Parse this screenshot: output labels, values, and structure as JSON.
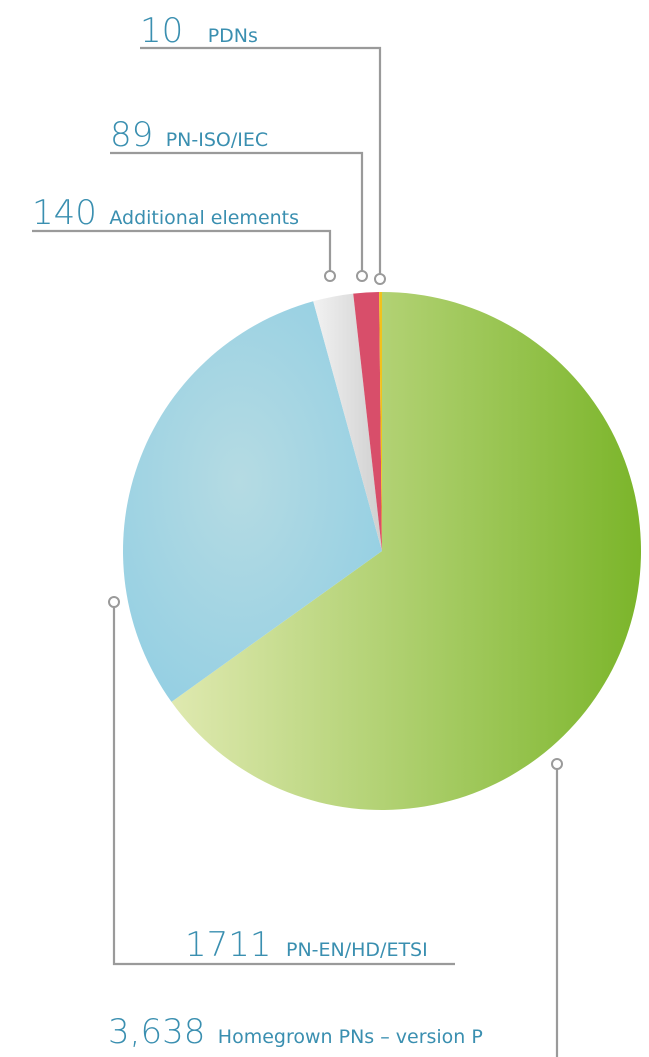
{
  "colors": {
    "label_text": "#3a8fb0",
    "leader_line": "#9a9a9a",
    "homegrown_light": "#dfe9b0",
    "homegrown_dark": "#7bb52a",
    "pn_en_light": "#b5dbe3",
    "pn_en_dark": "#8ecde3",
    "additional_light": "#f2f2f2",
    "additional_dark": "#cfcfcf",
    "pn_iso": "#d84e6a",
    "pdn": "#f2c21b"
  },
  "chart_data": {
    "type": "pie",
    "title": "",
    "start_angle_deg": 0,
    "direction": "clockwise",
    "slices": [
      {
        "key": "homegrown",
        "value": 3638,
        "value_label": "3,638",
        "label": "Homegrown PNs – version P"
      },
      {
        "key": "pn_en",
        "value": 1711,
        "value_label": "1711",
        "label": "PN-EN/HD/ETSI"
      },
      {
        "key": "additional",
        "value": 140,
        "value_label": "140",
        "label": "Additional elements"
      },
      {
        "key": "pn_iso",
        "value": 89,
        "value_label": "89",
        "label": "PN-ISO/IEC"
      },
      {
        "key": "pdn",
        "value": 10,
        "value_label": "10",
        "label": "PDNs"
      }
    ]
  }
}
